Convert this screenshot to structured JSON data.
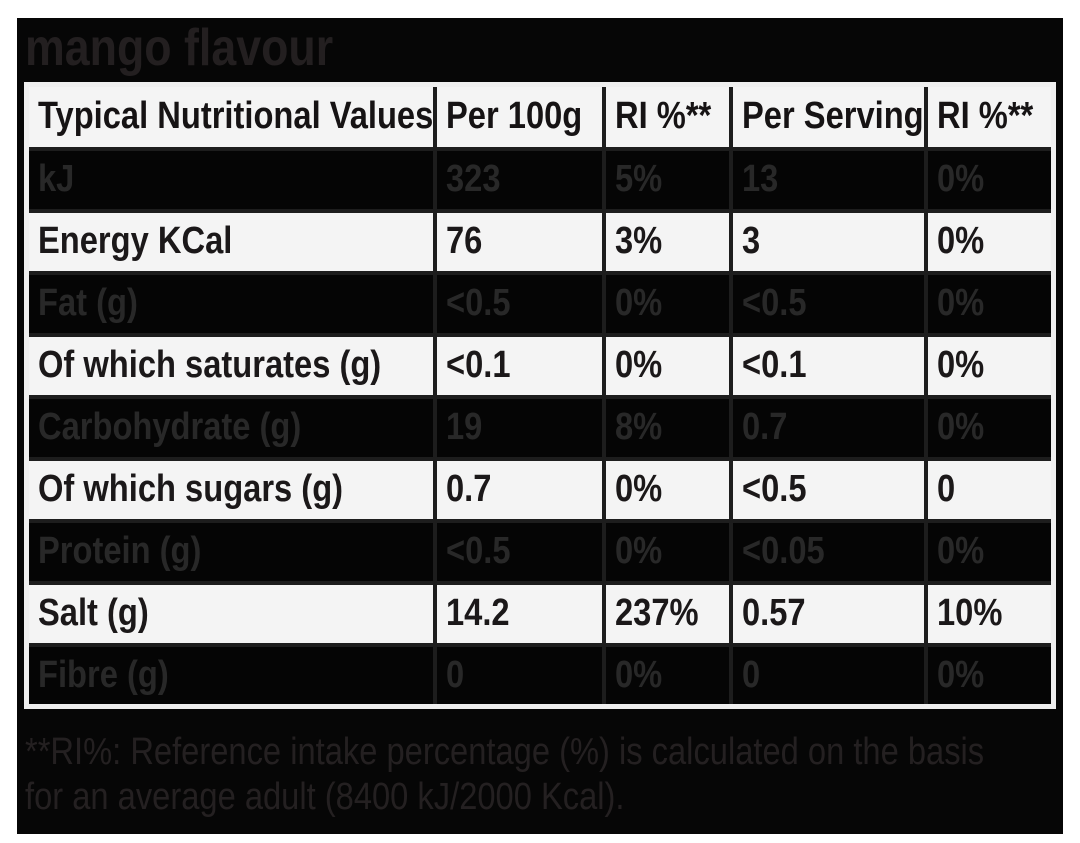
{
  "label": {
    "title": "mango flavour",
    "table": {
      "columns": [
        "Typical Nutritional Values",
        "Per 100g",
        "RI %**",
        "Per Serving",
        "RI %**"
      ],
      "rows": [
        {
          "name": "kJ",
          "per_100g": "323",
          "ri_100g": "5%",
          "per_serving": "13",
          "ri_serving": "0%",
          "variant": "dark"
        },
        {
          "name": "Energy KCal",
          "per_100g": "76",
          "ri_100g": "3%",
          "per_serving": "3",
          "ri_serving": "0%",
          "variant": "light"
        },
        {
          "name": "Fat (g)",
          "per_100g": "<0.5",
          "ri_100g": "0%",
          "per_serving": "<0.5",
          "ri_serving": "0%",
          "variant": "dark"
        },
        {
          "name": "Of which saturates (g)",
          "per_100g": "<0.1",
          "ri_100g": "0%",
          "per_serving": "<0.1",
          "ri_serving": "0%",
          "variant": "light"
        },
        {
          "name": "Carbohydrate (g)",
          "per_100g": "19",
          "ri_100g": "8%",
          "per_serving": "0.7",
          "ri_serving": "0%",
          "variant": "dark"
        },
        {
          "name": "Of which sugars (g)",
          "per_100g": "0.7",
          "ri_100g": "0%",
          "per_serving": "<0.5",
          "ri_serving": "0",
          "variant": "light"
        },
        {
          "name": "Protein (g)",
          "per_100g": "<0.5",
          "ri_100g": "0%",
          "per_serving": "<0.05",
          "ri_serving": "0%",
          "variant": "dark"
        },
        {
          "name": "Salt (g)",
          "per_100g": "14.2",
          "ri_100g": "237%",
          "per_serving": "0.57",
          "ri_serving": "10%",
          "variant": "light"
        },
        {
          "name": "Fibre (g)",
          "per_100g": "0",
          "ri_100g": "0%",
          "per_serving": "0",
          "ri_serving": "0%",
          "variant": "dark"
        }
      ]
    },
    "footnote": "**RI%: Reference intake percentage (%) is calculated on the basis for an average adult (8400 kJ/2000 Kcal).",
    "colors": {
      "page_background": "#ffffff",
      "label_background": "#060606",
      "title_text": "#231f20",
      "light_row_background": "#f4f4f4",
      "light_row_text": "#1b1819",
      "dark_row_background": "#050505",
      "dark_row_text": "#282828",
      "table_outer_border": "#efefef",
      "grid_line": "#1d1d1d"
    }
  }
}
